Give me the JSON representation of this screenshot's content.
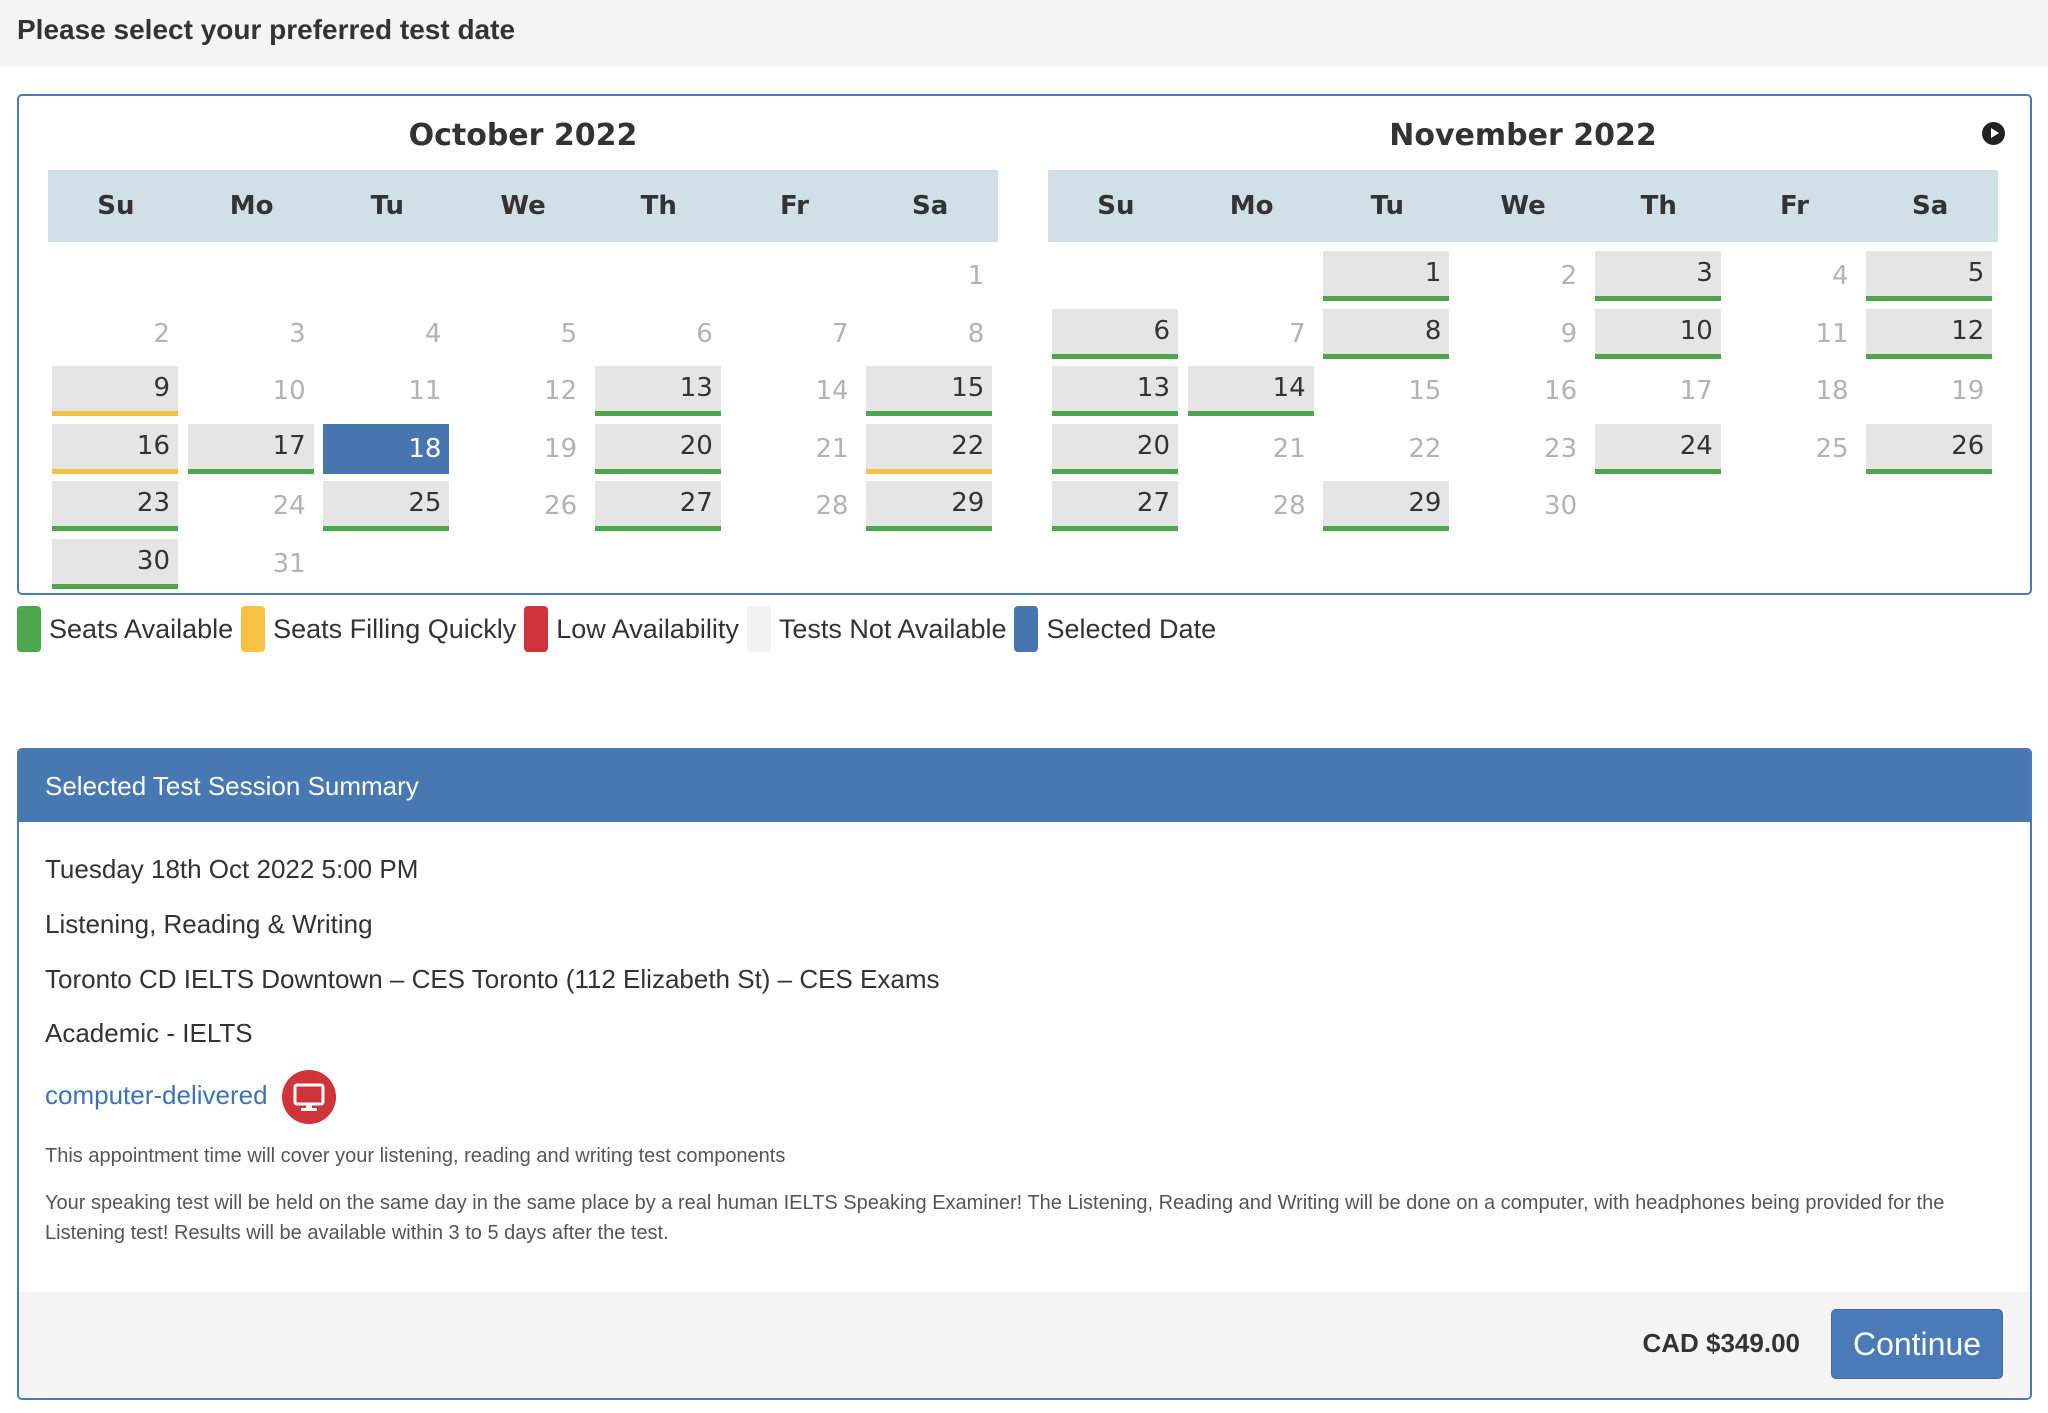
{
  "header": {
    "title": "Please select your preferred test date"
  },
  "colors": {
    "available": "#4da74e",
    "filling": "#f7c244",
    "low": "#d0333a",
    "not_available": "#f2f2f2",
    "selected": "#4775b0"
  },
  "calendar": {
    "weekdays": [
      "Su",
      "Mo",
      "Tu",
      "We",
      "Th",
      "Fr",
      "Sa"
    ],
    "next_icon": "next-month-icon",
    "months": [
      {
        "title": "October 2022",
        "days": [
          {
            "d": "1",
            "s": "na"
          },
          {
            "d": "2",
            "s": "na"
          },
          {
            "d": "3",
            "s": "na"
          },
          {
            "d": "4",
            "s": "na"
          },
          {
            "d": "5",
            "s": "na"
          },
          {
            "d": "6",
            "s": "na"
          },
          {
            "d": "7",
            "s": "na"
          },
          {
            "d": "8",
            "s": "na"
          },
          {
            "d": "9",
            "s": "fq"
          },
          {
            "d": "10",
            "s": "na"
          },
          {
            "d": "11",
            "s": "na"
          },
          {
            "d": "12",
            "s": "na"
          },
          {
            "d": "13",
            "s": "av"
          },
          {
            "d": "14",
            "s": "na"
          },
          {
            "d": "15",
            "s": "av"
          },
          {
            "d": "16",
            "s": "fq"
          },
          {
            "d": "17",
            "s": "av"
          },
          {
            "d": "18",
            "s": "sel"
          },
          {
            "d": "19",
            "s": "na"
          },
          {
            "d": "20",
            "s": "av"
          },
          {
            "d": "21",
            "s": "na"
          },
          {
            "d": "22",
            "s": "fq"
          },
          {
            "d": "23",
            "s": "av"
          },
          {
            "d": "24",
            "s": "na"
          },
          {
            "d": "25",
            "s": "av"
          },
          {
            "d": "26",
            "s": "na"
          },
          {
            "d": "27",
            "s": "av"
          },
          {
            "d": "28",
            "s": "na"
          },
          {
            "d": "29",
            "s": "av"
          },
          {
            "d": "30",
            "s": "av"
          },
          {
            "d": "31",
            "s": "na"
          }
        ]
      },
      {
        "title": "November 2022",
        "days": [
          {
            "d": "1",
            "s": "av"
          },
          {
            "d": "2",
            "s": "na"
          },
          {
            "d": "3",
            "s": "av"
          },
          {
            "d": "4",
            "s": "na"
          },
          {
            "d": "5",
            "s": "av"
          },
          {
            "d": "6",
            "s": "av"
          },
          {
            "d": "7",
            "s": "na"
          },
          {
            "d": "8",
            "s": "av"
          },
          {
            "d": "9",
            "s": "na"
          },
          {
            "d": "10",
            "s": "av"
          },
          {
            "d": "11",
            "s": "na"
          },
          {
            "d": "12",
            "s": "av"
          },
          {
            "d": "13",
            "s": "av"
          },
          {
            "d": "14",
            "s": "av"
          },
          {
            "d": "15",
            "s": "na"
          },
          {
            "d": "16",
            "s": "na"
          },
          {
            "d": "17",
            "s": "na"
          },
          {
            "d": "18",
            "s": "na"
          },
          {
            "d": "19",
            "s": "na"
          },
          {
            "d": "20",
            "s": "av"
          },
          {
            "d": "21",
            "s": "na"
          },
          {
            "d": "22",
            "s": "na"
          },
          {
            "d": "23",
            "s": "na"
          },
          {
            "d": "24",
            "s": "av"
          },
          {
            "d": "25",
            "s": "na"
          },
          {
            "d": "26",
            "s": "av"
          },
          {
            "d": "27",
            "s": "av"
          },
          {
            "d": "28",
            "s": "na"
          },
          {
            "d": "29",
            "s": "av"
          },
          {
            "d": "30",
            "s": "na"
          }
        ]
      }
    ]
  },
  "legend": [
    {
      "label": "Seats Available",
      "color": "#4da74e"
    },
    {
      "label": "Seats Filling Quickly",
      "color": "#f7c244"
    },
    {
      "label": "Low Availability",
      "color": "#d0333a"
    },
    {
      "label": "Tests Not Available",
      "color": "#f2f2f2"
    },
    {
      "label": "Selected Date",
      "color": "#4775b0"
    }
  ],
  "summary": {
    "heading": "Selected Test Session Summary",
    "datetime": "Tuesday 18th Oct 2022 5:00 PM",
    "components": "Listening, Reading & Writing",
    "venue": "Toronto CD IELTS Downtown – CES Toronto (112 Elizabeth St) – CES Exams",
    "module": "Academic - IELTS",
    "delivery_link": "computer-delivered",
    "delivery_icon": "monitor-icon",
    "note1": "This appointment time will cover your listening, reading and writing test components",
    "note2": "Your speaking test will be held on the same day in the same place by a real human IELTS Speaking Examiner! The Listening, Reading and Writing will be done on a computer, with headphones being provided for the Listening test! Results will be available within 3 to 5 days after the test.",
    "price": "CAD $349.00",
    "continue_label": "Continue"
  }
}
